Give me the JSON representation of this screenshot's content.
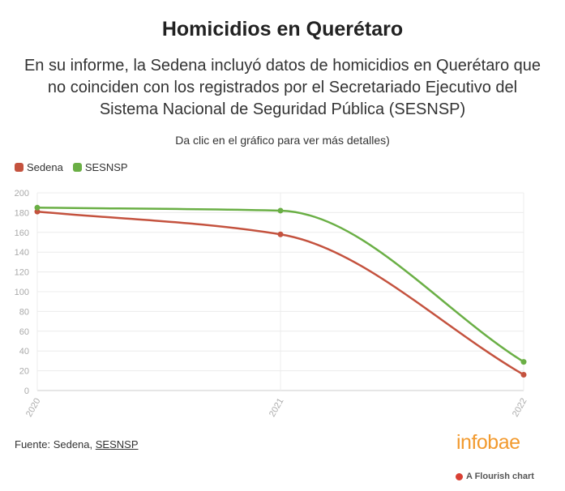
{
  "chart_data": {
    "type": "line",
    "title": "Homicidios en Querétaro",
    "subtitle": "En su informe, la Sedena incluyó datos de homicidios en Querétaro que no coinciden con los registrados por el Secretariado Ejecutivo del Sistema Nacional de Seguridad Pública (SESNSP)",
    "note": "Da clic en el gráfico para ver más detalles)",
    "x": [
      2020,
      2021,
      2022
    ],
    "xlim": [
      2020,
      2022
    ],
    "xticks": [
      2020,
      2021,
      2022
    ],
    "series": [
      {
        "name": "Sedena",
        "color": "#c4523e",
        "values": [
          181,
          158,
          16
        ]
      },
      {
        "name": "SESNSP",
        "color": "#6aaf45",
        "values": [
          185,
          182,
          29
        ]
      }
    ],
    "ylim": [
      0,
      200
    ],
    "yticks": [
      0,
      20,
      40,
      60,
      80,
      100,
      120,
      140,
      160,
      180,
      200
    ],
    "grid": true,
    "source_label": "Fuente: Sedena,",
    "source_link": "SESNSP",
    "logo": "infobae",
    "credit": "A Flourish chart"
  }
}
